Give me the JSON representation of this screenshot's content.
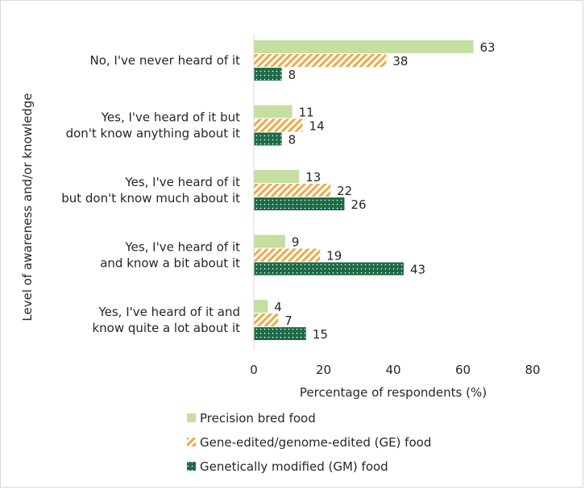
{
  "chart_data": {
    "type": "bar",
    "orientation": "horizontal",
    "categories": [
      [
        "No, I've never heard of it"
      ],
      [
        "Yes, I've heard of it but",
        "don't know anything about it"
      ],
      [
        "Yes, I've heard of it",
        "but don't know much about it"
      ],
      [
        "Yes, I've heard of it",
        "and know a bit about it"
      ],
      [
        "Yes, I've heard of it and",
        "know quite a lot about it"
      ]
    ],
    "series": [
      {
        "name": "Precision bred food",
        "values": [
          63,
          11,
          13,
          9,
          4
        ],
        "color": "#c5dfa0",
        "pattern": "solid"
      },
      {
        "name": "Gene-edited/genome-edited (GE) food",
        "values": [
          38,
          14,
          22,
          19,
          7
        ],
        "color": "#f0a848",
        "pattern": "diagonal-stripes"
      },
      {
        "name": "Genetically modified (GM) food",
        "values": [
          8,
          8,
          26,
          43,
          15
        ],
        "color": "#1e6b48",
        "pattern": "dots"
      }
    ],
    "xlabel": "Percentage of respondents (%)",
    "ylabel": "Level of awareness and/or knowledge",
    "xlim": [
      0,
      80
    ],
    "xticks": [
      0,
      20,
      40,
      60,
      80
    ],
    "grid": false,
    "legend_position": "bottom"
  }
}
